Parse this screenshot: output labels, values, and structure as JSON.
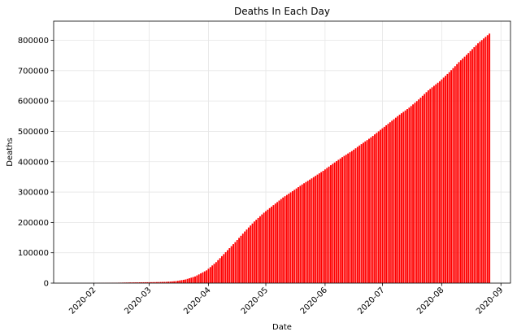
{
  "chart_data": {
    "type": "bar",
    "title": "Deaths In Each Day",
    "xlabel": "Date",
    "ylabel": "Deaths",
    "color": "#ff0000",
    "grid": true,
    "x_range": [
      "2020-01-11",
      "2020-09-06"
    ],
    "ylim": [
      0,
      863000
    ],
    "x_ticks": [
      "2020-02",
      "2020-03",
      "2020-04",
      "2020-05",
      "2020-06",
      "2020-07",
      "2020-08",
      "2020-09"
    ],
    "y_ticks": [
      0,
      100000,
      200000,
      300000,
      400000,
      500000,
      600000,
      700000,
      800000
    ],
    "series": [
      {
        "values": [
          {
            "date": "2020-01-22",
            "deaths": 17
          },
          {
            "date": "2020-02-01",
            "deaths": 259
          },
          {
            "date": "2020-02-10",
            "deaths": 910
          },
          {
            "date": "2020-02-20",
            "deaths": 2250
          },
          {
            "date": "2020-03-01",
            "deaths": 3000
          },
          {
            "date": "2020-03-05",
            "deaths": 3400
          },
          {
            "date": "2020-03-10",
            "deaths": 4300
          },
          {
            "date": "2020-03-15",
            "deaths": 6500
          },
          {
            "date": "2020-03-20",
            "deaths": 12000
          },
          {
            "date": "2020-03-25",
            "deaths": 22000
          },
          {
            "date": "2020-03-31",
            "deaths": 42000
          },
          {
            "date": "2020-04-05",
            "deaths": 69000
          },
          {
            "date": "2020-04-10",
            "deaths": 102000
          },
          {
            "date": "2020-04-15",
            "deaths": 135000
          },
          {
            "date": "2020-04-20",
            "deaths": 170000
          },
          {
            "date": "2020-04-25",
            "deaths": 203000
          },
          {
            "date": "2020-04-30",
            "deaths": 232000
          },
          {
            "date": "2020-05-05",
            "deaths": 257000
          },
          {
            "date": "2020-05-10",
            "deaths": 282000
          },
          {
            "date": "2020-05-15",
            "deaths": 303000
          },
          {
            "date": "2020-05-20",
            "deaths": 325000
          },
          {
            "date": "2020-05-25",
            "deaths": 345000
          },
          {
            "date": "2020-05-31",
            "deaths": 370000
          },
          {
            "date": "2020-06-05",
            "deaths": 393000
          },
          {
            "date": "2020-06-10",
            "deaths": 415000
          },
          {
            "date": "2020-06-15",
            "deaths": 435000
          },
          {
            "date": "2020-06-20",
            "deaths": 458000
          },
          {
            "date": "2020-06-25",
            "deaths": 480000
          },
          {
            "date": "2020-06-30",
            "deaths": 505000
          },
          {
            "date": "2020-07-05",
            "deaths": 530000
          },
          {
            "date": "2020-07-10",
            "deaths": 555000
          },
          {
            "date": "2020-07-15",
            "deaths": 578000
          },
          {
            "date": "2020-07-20",
            "deaths": 605000
          },
          {
            "date": "2020-07-25",
            "deaths": 635000
          },
          {
            "date": "2020-07-31",
            "deaths": 665000
          },
          {
            "date": "2020-08-05",
            "deaths": 695000
          },
          {
            "date": "2020-08-10",
            "deaths": 728000
          },
          {
            "date": "2020-08-15",
            "deaths": 758000
          },
          {
            "date": "2020-08-20",
            "deaths": 790000
          },
          {
            "date": "2020-08-26",
            "deaths": 822000
          }
        ]
      }
    ]
  }
}
